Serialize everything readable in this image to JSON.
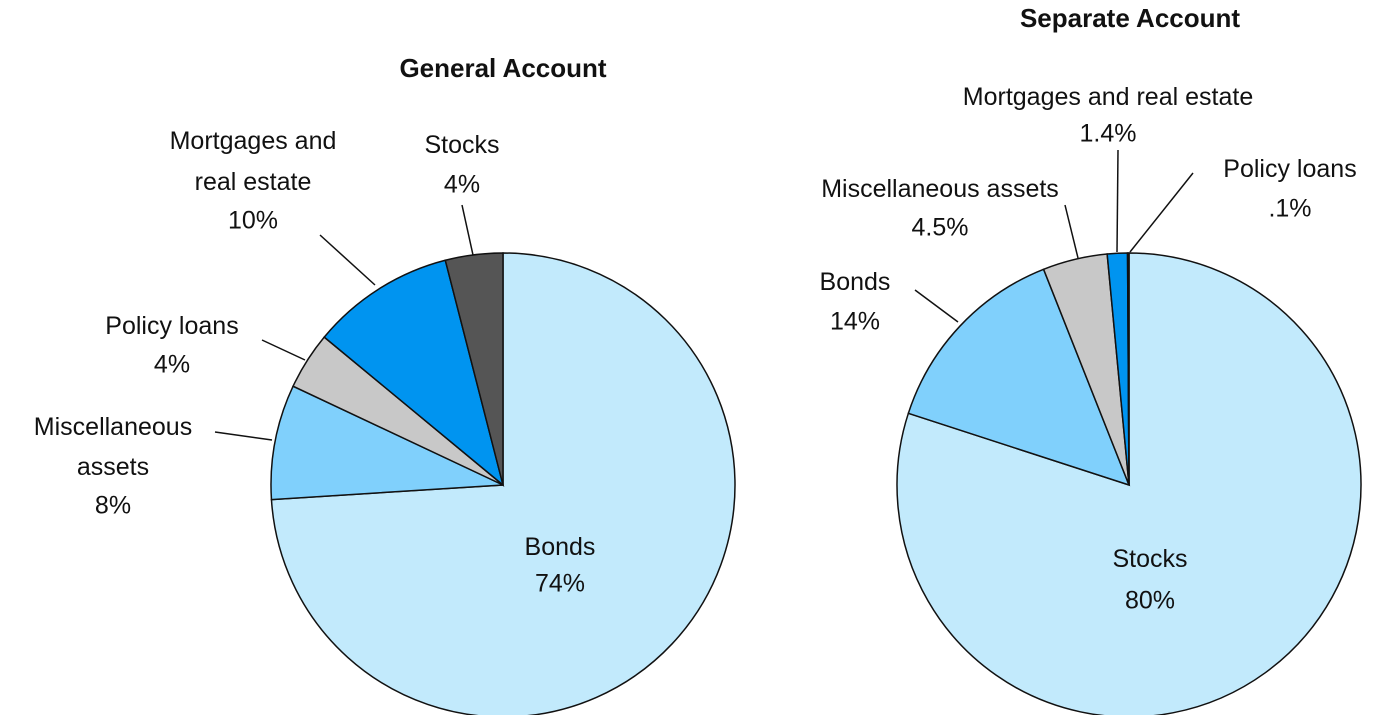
{
  "chart_data": [
    {
      "type": "pie",
      "title": "General Account",
      "categories": [
        "Bonds",
        "Miscellaneous assets",
        "Policy loans",
        "Mortgages and real estate",
        "Stocks"
      ],
      "values": [
        74,
        8,
        4,
        10,
        4
      ],
      "value_labels": [
        "74%",
        "8%",
        "4%",
        "10%",
        "4%"
      ],
      "colors": [
        "#c2eafc",
        "#80d0fc",
        "#c8c8c8",
        "#0094f0",
        "#555555"
      ]
    },
    {
      "type": "pie",
      "title": "Separate Account",
      "categories": [
        "Stocks",
        "Bonds",
        "Miscellaneous assets",
        "Mortgages and real estate",
        "Policy loans"
      ],
      "values": [
        80,
        14,
        4.5,
        1.4,
        0.1
      ],
      "value_labels": [
        "80%",
        "14%",
        "4.5%",
        "1.4%",
        ".1%"
      ],
      "colors": [
        "#c2eafc",
        "#80d0fc",
        "#c8c8c8",
        "#0094f0",
        "#0060c0"
      ]
    }
  ]
}
